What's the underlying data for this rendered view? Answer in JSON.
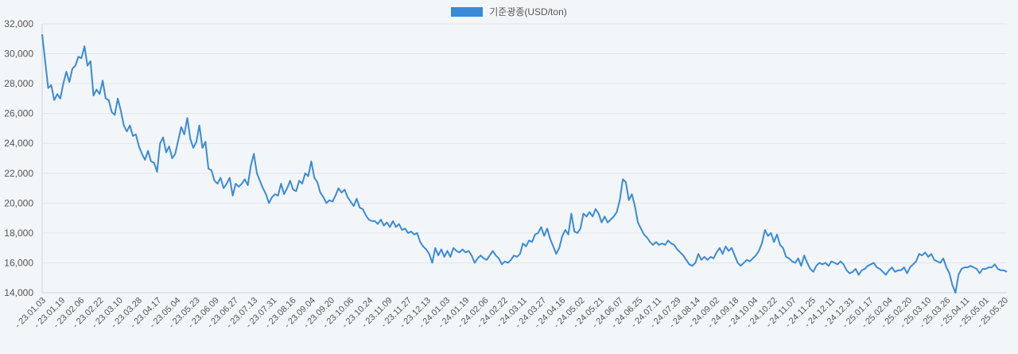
{
  "colors": {
    "background": "#f3f6f9",
    "series": "#3a8ad8",
    "grid": "#e1e5ea",
    "axis": "#cfd4da",
    "tick_text": "#555555"
  },
  "legend": {
    "label": "기준광종(USD/ton)"
  },
  "chart_data": {
    "type": "line",
    "title": "",
    "xlabel": "",
    "ylabel": "",
    "ylim": [
      14000,
      32000
    ],
    "yticks": [
      14000,
      16000,
      18000,
      20000,
      22000,
      24000,
      26000,
      28000,
      30000,
      32000
    ],
    "ytick_labels": [
      "14,000",
      "16,000",
      "18,000",
      "20,000",
      "22,000",
      "24,000",
      "26,000",
      "28,000",
      "30,000",
      "32,000"
    ],
    "grid": true,
    "legend_position": "top",
    "xtick_labels": [
      "23.01.03",
      "23.01.19",
      "23.02.06",
      "23.02.22",
      "23.03.10",
      "23.03.28",
      "23.04.17",
      "23.05.04",
      "23.05.23",
      "23.06.09",
      "23.06.27",
      "23.07.13",
      "23.07.31",
      "23.08.16",
      "23.09.04",
      "23.09.20",
      "23.10.06",
      "23.10.24",
      "23.11.09",
      "23.11.27",
      "23.12.13",
      "24.01.03",
      "24.01.19",
      "24.02.06",
      "24.02.22",
      "24.03.11",
      "24.03.27",
      "24.04.16",
      "24.05.02",
      "24.05.21",
      "24.06.07",
      "24.06.25",
      "24.07.11",
      "24.07.29",
      "24.08.14",
      "24.09.02",
      "24.09.18",
      "24.10.04",
      "24.10.22",
      "24.11.07",
      "24.11.25",
      "24.12.11",
      "24.12.31",
      "25.01.17",
      "25.02.04",
      "25.02.20",
      "25.03.10",
      "25.03.26",
      "25.04.11",
      "25.05.01",
      "25.05.20"
    ],
    "series": [
      {
        "name": "기준광종(USD/ton)",
        "values": [
          31300,
          29500,
          27700,
          27900,
          26900,
          27300,
          27000,
          28000,
          28800,
          28100,
          29000,
          29200,
          29800,
          29700,
          30500,
          29200,
          29500,
          27200,
          27600,
          27300,
          28200,
          27000,
          26900,
          26100,
          25900,
          27000,
          26200,
          25200,
          24800,
          25200,
          24500,
          24600,
          23800,
          23300,
          22900,
          23500,
          22800,
          22700,
          22100,
          24000,
          24400,
          23400,
          23800,
          23000,
          23300,
          24200,
          25100,
          24600,
          25700,
          24300,
          23700,
          24100,
          25200,
          23700,
          24100,
          22300,
          22200,
          21500,
          21300,
          21700,
          21000,
          21300,
          21700,
          20500,
          21300,
          21100,
          21300,
          21600,
          21200,
          22500,
          23300,
          22000,
          21500,
          21000,
          20600,
          20000,
          20400,
          20600,
          20500,
          21300,
          20600,
          21000,
          21500,
          20900,
          20800,
          21500,
          21300,
          22000,
          21800,
          22800,
          21700,
          21400,
          20700,
          20400,
          20000,
          20200,
          20100,
          20500,
          21000,
          20700,
          20900,
          20400,
          20100,
          19800,
          20300,
          19700,
          19600,
          19200,
          18900,
          18800,
          18800,
          18600,
          18900,
          18500,
          18700,
          18400,
          18800,
          18400,
          18600,
          18200,
          18300,
          18000,
          18100,
          17900,
          18000,
          17400,
          17100,
          16900,
          16600,
          16000,
          17000,
          16500,
          16900,
          16400,
          16800,
          16400,
          17000,
          16800,
          16700,
          16900,
          16700,
          16800,
          16500,
          16000,
          16300,
          16500,
          16300,
          16200,
          16500,
          16800,
          16500,
          16300,
          15900,
          16100,
          16000,
          16200,
          16500,
          16400,
          16600,
          17300,
          17100,
          17500,
          17400,
          17900,
          18000,
          18400,
          17800,
          18300,
          17600,
          17100,
          16600,
          17000,
          17800,
          18200,
          17900,
          19300,
          18100,
          18000,
          18300,
          19300,
          19100,
          19400,
          19100,
          19600,
          19300,
          18700,
          19100,
          18700,
          18900,
          19100,
          19400,
          20200,
          21600,
          21400,
          20200,
          20600,
          19800,
          18700,
          18300,
          17900,
          17700,
          17400,
          17200,
          17400,
          17200,
          17300,
          17200,
          17500,
          17300,
          17200,
          16900,
          16700,
          16500,
          16200,
          15900,
          15800,
          16000,
          16600,
          16200,
          16400,
          16200,
          16400,
          16300,
          16700,
          17000,
          16600,
          17100,
          16800,
          17000,
          16500,
          16000,
          15800,
          16000,
          16200,
          16100,
          16300,
          16500,
          16800,
          17300,
          18200,
          17800,
          18000,
          17400,
          17900,
          17200,
          17000,
          16400,
          16300,
          16100,
          16000,
          16300,
          15800,
          16500,
          16000,
          15600,
          15400,
          15800,
          16000,
          15900,
          16000,
          15800,
          16100,
          16000,
          15900,
          16100,
          15900,
          15500,
          15300,
          15400,
          15600,
          15200,
          15500,
          15600,
          15800,
          15900,
          16000,
          15700,
          15600,
          15400,
          15200,
          15500,
          15700,
          15400,
          15500,
          15500,
          15700,
          15300,
          15700,
          15900,
          16100,
          16600,
          16500,
          16700,
          16400,
          16600,
          16200,
          16100,
          16000,
          16300,
          15700,
          15300,
          14500,
          14000,
          15200,
          15600,
          15700,
          15700,
          15800,
          15700,
          15600,
          15300,
          15600,
          15600,
          15700,
          15700,
          15900,
          15600,
          15500,
          15500,
          15400
        ]
      }
    ]
  }
}
